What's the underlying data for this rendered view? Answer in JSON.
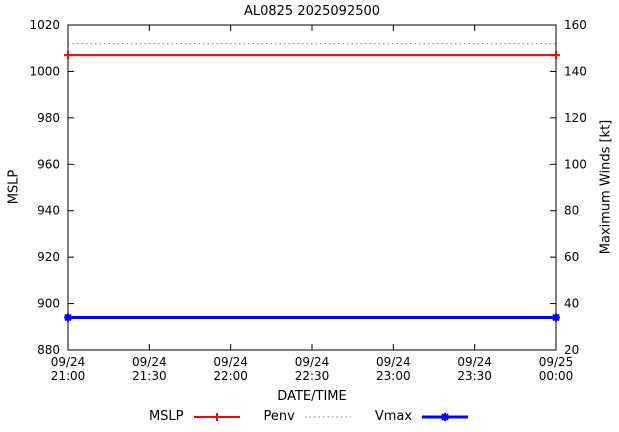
{
  "chart_data": {
    "type": "line",
    "title": "AL0825 2025092500",
    "xlabel": "DATE/TIME",
    "ylabel_left": "MSLP",
    "ylabel_right": "Maximum Winds [kt]",
    "x_range": [
      0,
      6
    ],
    "x_tick_labels": [
      [
        "09/24",
        "21:00"
      ],
      [
        "09/24",
        "21:30"
      ],
      [
        "09/24",
        "22:00"
      ],
      [
        "09/24",
        "22:30"
      ],
      [
        "09/24",
        "23:00"
      ],
      [
        "09/24",
        "23:30"
      ],
      [
        "09/25",
        "00:00"
      ]
    ],
    "ylim_left": [
      880,
      1020
    ],
    "ylim_right": [
      20,
      160
    ],
    "ytick_interval": 20,
    "left_tick_labels": [
      "880",
      "900",
      "920",
      "940",
      "960",
      "980",
      "1000",
      "1020"
    ],
    "right_tick_labels": [
      "20",
      "40",
      "60",
      "80",
      "100",
      "120",
      "140",
      "160"
    ],
    "series": [
      {
        "name": "MSLP",
        "axis": "left",
        "color": "#ff0000",
        "line": "solid",
        "width": 2,
        "marker": "plus",
        "x": [
          0,
          6
        ],
        "values": [
          1007,
          1007
        ]
      },
      {
        "name": "Penv",
        "axis": "left",
        "color": "#808080",
        "line": "dotted",
        "width": 1,
        "marker": "none",
        "x": [
          0,
          6
        ],
        "values": [
          1012,
          1012
        ]
      },
      {
        "name": "Vmax",
        "axis": "right",
        "color": "#0000ff",
        "line": "solid",
        "width": 3,
        "marker": "asterisk",
        "x": [
          0,
          6
        ],
        "values": [
          34,
          34
        ]
      }
    ],
    "legend_order": [
      "MSLP",
      "Penv",
      "Vmax"
    ]
  }
}
